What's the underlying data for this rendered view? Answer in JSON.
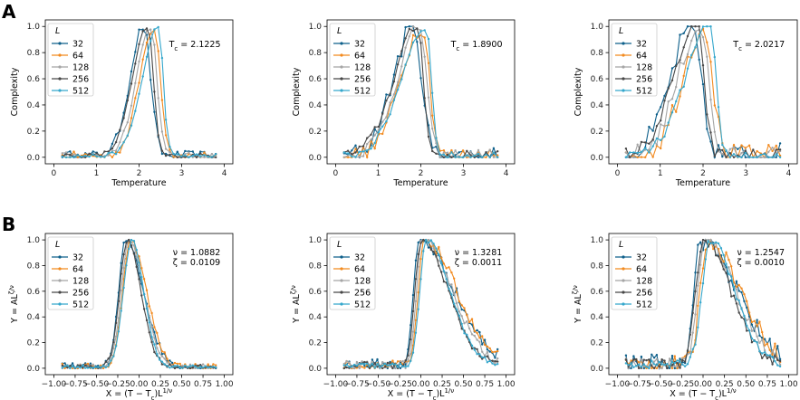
{
  "labels": {
    "row_a": "A",
    "row_b": "B"
  },
  "legend_title": "L",
  "chart_data": [
    {
      "type": "line",
      "row": "A",
      "col": 0,
      "xlabel": "Temperature",
      "ylabel": "Complexity",
      "xlim": [
        -0.2,
        4.2
      ],
      "ylim": [
        -0.05,
        1.05
      ],
      "xticks": [
        0,
        1,
        2,
        3,
        4
      ],
      "xtick_labels": [
        "0",
        "1",
        "2",
        "3",
        "4"
      ],
      "yticks": [
        0,
        0.2,
        0.4,
        0.6,
        0.8,
        1.0
      ],
      "ytick_labels": [
        "0.0",
        "0.2",
        "0.4",
        "0.6",
        "0.8",
        "1.0"
      ],
      "annotation": [
        "T_c = 2.1225"
      ],
      "peak": 2.28,
      "wl": 0.62,
      "wr": 0.2,
      "spread": 0.25,
      "noise": 0.015,
      "base": 0.01,
      "series": [
        {
          "name": "32"
        },
        {
          "name": "64"
        },
        {
          "name": "128"
        },
        {
          "name": "256"
        },
        {
          "name": "512"
        }
      ]
    },
    {
      "type": "line",
      "row": "A",
      "col": 1,
      "xlabel": "Temperature",
      "ylabel": "Complexity",
      "xlim": [
        -0.2,
        4.2
      ],
      "ylim": [
        -0.05,
        1.05
      ],
      "xticks": [
        0,
        1,
        2,
        3,
        4
      ],
      "xtick_labels": [
        "0",
        "1",
        "2",
        "3",
        "4"
      ],
      "yticks": [
        0,
        0.2,
        0.4,
        0.6,
        0.8,
        1.0
      ],
      "ytick_labels": [
        "0.0",
        "0.2",
        "0.4",
        "0.6",
        "0.8",
        "1.0"
      ],
      "annotation": [
        "T_c = 1.8900"
      ],
      "peak": 1.98,
      "wl": 0.95,
      "wr": 0.22,
      "spread": 0.2,
      "noise": 0.03,
      "base": 0.01,
      "series": [
        {
          "name": "32"
        },
        {
          "name": "64"
        },
        {
          "name": "128"
        },
        {
          "name": "256"
        },
        {
          "name": "512"
        }
      ]
    },
    {
      "type": "line",
      "row": "A",
      "col": 2,
      "xlabel": "Temperature",
      "ylabel": "Complexity",
      "xlim": [
        -0.2,
        4.2
      ],
      "ylim": [
        -0.05,
        1.05
      ],
      "xticks": [
        0,
        1,
        2,
        3,
        4
      ],
      "xtick_labels": [
        "0",
        "1",
        "2",
        "3",
        "4"
      ],
      "yticks": [
        0,
        0.2,
        0.4,
        0.6,
        0.8,
        1.0
      ],
      "ytick_labels": [
        "0.0",
        "0.2",
        "0.4",
        "0.6",
        "0.8",
        "1.0"
      ],
      "annotation": [
        "T_c = 2.0217"
      ],
      "peak": 1.95,
      "wl": 0.95,
      "wr": 0.25,
      "spread": 0.3,
      "noise": 0.04,
      "base": 0.01,
      "series": [
        {
          "name": "32"
        },
        {
          "name": "64"
        },
        {
          "name": "128"
        },
        {
          "name": "256"
        },
        {
          "name": "512"
        }
      ]
    },
    {
      "type": "line",
      "row": "B",
      "col": 0,
      "xlabel": "X = (T − T_c)L^{1/ν}",
      "ylabel": "Y = AL^{ζ/ν}",
      "xlim": [
        -1.1,
        1.1
      ],
      "ylim": [
        -0.05,
        1.05
      ],
      "xticks": [
        -1.0,
        -0.75,
        -0.5,
        -0.25,
        0,
        0.25,
        0.5,
        0.75,
        1.0
      ],
      "xtick_labels": [
        "−1.00",
        "−0.75",
        "−0.50",
        "−0.25",
        "0.00",
        "0.25",
        "0.50",
        "0.75",
        "1.00"
      ],
      "yticks": [
        0,
        0.2,
        0.4,
        0.6,
        0.8,
        1.0
      ],
      "ytick_labels": [
        "0.0",
        "0.2",
        "0.4",
        "0.6",
        "0.8",
        "1.0"
      ],
      "annotation": [
        "ν = 1.0882",
        "ζ = 0.0109"
      ],
      "peak": -0.12,
      "wl": 0.16,
      "wr": 0.25,
      "spread": 0.05,
      "noise": 0.012,
      "base": 0.01,
      "series": [
        {
          "name": "32"
        },
        {
          "name": "64"
        },
        {
          "name": "128"
        },
        {
          "name": "256"
        },
        {
          "name": "512"
        }
      ]
    },
    {
      "type": "line",
      "row": "B",
      "col": 1,
      "xlabel": "X = (T − T_c)L^{1/ν}",
      "ylabel": "Y = AL^{ζ/ν}",
      "xlim": [
        -1.1,
        1.1
      ],
      "ylim": [
        -0.05,
        1.05
      ],
      "xticks": [
        -1.0,
        -0.75,
        -0.5,
        -0.25,
        0,
        0.25,
        0.5,
        0.75,
        1.0
      ],
      "xtick_labels": [
        "−1.00",
        "−0.75",
        "−0.50",
        "−0.25",
        "0.00",
        "0.25",
        "0.50",
        "0.75",
        "1.00"
      ],
      "yticks": [
        0,
        0.2,
        0.4,
        0.6,
        0.8,
        1.0
      ],
      "ytick_labels": [
        "0.0",
        "0.2",
        "0.4",
        "0.6",
        "0.8",
        "1.0"
      ],
      "annotation": [
        "ν = 1.3281",
        "ζ = 0.0011"
      ],
      "peak": 0.02,
      "wl": 0.12,
      "wr": 0.5,
      "spread": 0.06,
      "noise": 0.02,
      "base": 0.02,
      "series": [
        {
          "name": "32"
        },
        {
          "name": "64"
        },
        {
          "name": "128"
        },
        {
          "name": "256"
        },
        {
          "name": "512"
        }
      ]
    },
    {
      "type": "line",
      "row": "B",
      "col": 2,
      "xlabel": "X = (T − T_c)L^{1/ν}",
      "ylabel": "Y = AL^{ζ/ν}",
      "xlim": [
        -1.1,
        1.1
      ],
      "ylim": [
        -0.05,
        1.05
      ],
      "xticks": [
        -1.0,
        -0.75,
        -0.5,
        -0.25,
        0,
        0.25,
        0.5,
        0.75,
        1.0
      ],
      "xtick_labels": [
        "−1.00",
        "−0.75",
        "−0.50",
        "−0.25",
        "0.00",
        "0.25",
        "0.50",
        "0.75",
        "1.00"
      ],
      "yticks": [
        0,
        0.2,
        0.4,
        0.6,
        0.8,
        1.0
      ],
      "ytick_labels": [
        "0.0",
        "0.2",
        "0.4",
        "0.6",
        "0.8",
        "1.0"
      ],
      "annotation": [
        "ν = 1.2547",
        "ζ = 0.0010"
      ],
      "peak": 0.03,
      "wl": 0.16,
      "wr": 0.5,
      "spread": 0.08,
      "noise": 0.03,
      "base": 0.03,
      "series": [
        {
          "name": "32"
        },
        {
          "name": "64"
        },
        {
          "name": "128"
        },
        {
          "name": "256"
        },
        {
          "name": "512"
        }
      ]
    }
  ],
  "series_colors": [
    "#0d5f8a",
    "#f28a1f",
    "#a5a5a5",
    "#474747",
    "#35a7cc"
  ]
}
